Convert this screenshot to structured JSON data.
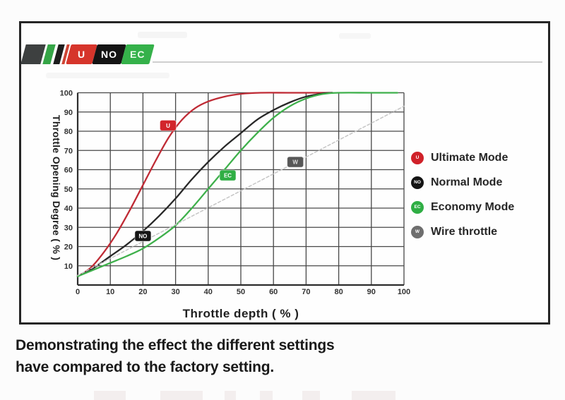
{
  "logo": {
    "u": "U",
    "no": "NO",
    "ec": "EC"
  },
  "caption": {
    "line1": "Demonstrating the effect the different settings",
    "line2": "have compared to the factory setting."
  },
  "chart_data": {
    "type": "line",
    "title": "",
    "xlabel": "Throttle depth ( % )",
    "ylabel": "Throttle Opening Degree ( % )",
    "xlim": [
      0,
      100
    ],
    "ylim": [
      0,
      100
    ],
    "x_ticks": [
      0,
      10,
      20,
      30,
      40,
      50,
      60,
      70,
      80,
      90,
      100
    ],
    "y_ticks": [
      10,
      20,
      30,
      40,
      50,
      60,
      70,
      80,
      90,
      100
    ],
    "grid": true,
    "grid_color": "#474747",
    "axis_color": "#2d2d2d",
    "tick_color": "#333333",
    "legend_position": "right",
    "series": [
      {
        "name": "Ultimate Mode",
        "color": "#bf2b35",
        "dash": null,
        "points": [
          [
            0,
            4.5
          ],
          [
            4,
            9
          ],
          [
            8,
            17
          ],
          [
            12,
            27
          ],
          [
            16,
            39
          ],
          [
            20,
            52
          ],
          [
            24,
            65
          ],
          [
            28,
            77
          ],
          [
            32,
            86
          ],
          [
            36,
            92
          ],
          [
            40,
            95.5
          ],
          [
            45,
            98
          ],
          [
            50,
            99.4
          ],
          [
            56,
            100
          ],
          [
            65,
            100
          ],
          [
            78,
            100
          ]
        ]
      },
      {
        "name": "Normal Mode",
        "color": "#282828",
        "dash": null,
        "points": [
          [
            0,
            4.5
          ],
          [
            5,
            9
          ],
          [
            10,
            15
          ],
          [
            15,
            21
          ],
          [
            20,
            28
          ],
          [
            25,
            36
          ],
          [
            30,
            45
          ],
          [
            35,
            55
          ],
          [
            40,
            64
          ],
          [
            45,
            72
          ],
          [
            50,
            79
          ],
          [
            55,
            86
          ],
          [
            60,
            91
          ],
          [
            65,
            95
          ],
          [
            70,
            98
          ],
          [
            75,
            99.6
          ],
          [
            78,
            100
          ]
        ]
      },
      {
        "name": "Economy Mode",
        "color": "#3eb04b",
        "dash": null,
        "points": [
          [
            0,
            4.5
          ],
          [
            5,
            8
          ],
          [
            10,
            11.5
          ],
          [
            15,
            15
          ],
          [
            20,
            19
          ],
          [
            25,
            24.5
          ],
          [
            30,
            31
          ],
          [
            35,
            40
          ],
          [
            40,
            50
          ],
          [
            45,
            60
          ],
          [
            50,
            70
          ],
          [
            55,
            79
          ],
          [
            60,
            87
          ],
          [
            65,
            93
          ],
          [
            70,
            97
          ],
          [
            75,
            99.3
          ],
          [
            80,
            100
          ],
          [
            90,
            100
          ],
          [
            98,
            100
          ]
        ]
      },
      {
        "name": "Wire throttle",
        "color": "#c6c6c6",
        "dash": "4 3",
        "points": [
          [
            0,
            5
          ],
          [
            100,
            93
          ]
        ]
      }
    ],
    "badges": [
      {
        "label": "U",
        "x": 27.7,
        "y": 83,
        "bg": "#d2252b",
        "fg": "#ffffff"
      },
      {
        "label": "NO",
        "x": 20,
        "y": 25.5,
        "bg": "#151515",
        "fg": "#ffffff"
      },
      {
        "label": "EC",
        "x": 46,
        "y": 57,
        "bg": "#2fae44",
        "fg": "#ffffff"
      },
      {
        "label": "W",
        "x": 66.7,
        "y": 64,
        "bg": "#575757",
        "fg": "#dddddd"
      }
    ],
    "legend": [
      {
        "label": "Ultimate Mode",
        "dot_label": "U",
        "color": "#d02129"
      },
      {
        "label": "Normal Mode",
        "dot_label": "NO",
        "color": "#141414"
      },
      {
        "label": "Economy Mode",
        "dot_label": "EC",
        "color": "#2fae44"
      },
      {
        "label": "Wire throttle",
        "dot_label": "W",
        "color": "#6e6e6e"
      }
    ]
  }
}
